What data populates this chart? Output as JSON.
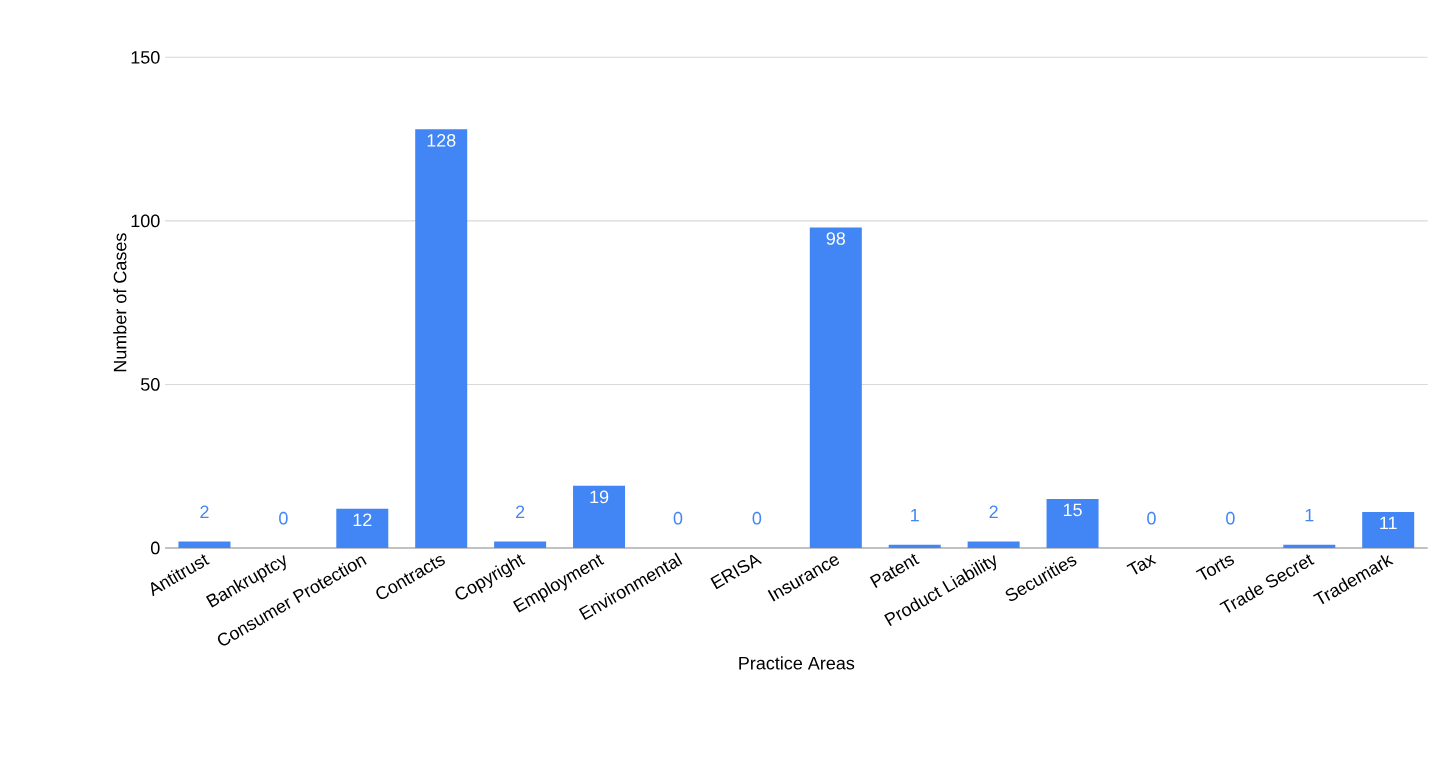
{
  "chart_data": {
    "type": "bar",
    "xlabel": "Practice Areas",
    "ylabel": "Number of Cases",
    "categories": [
      "Antitrust",
      "Bankruptcy",
      "Consumer Protection",
      "Contracts",
      "Copyright",
      "Employment",
      "Environmental",
      "ERISA",
      "Insurance",
      "Patent",
      "Product Liability",
      "Securities",
      "Tax",
      "Torts",
      "Trade Secret",
      "Trademark"
    ],
    "values": [
      2,
      0,
      12,
      128,
      2,
      19,
      0,
      0,
      98,
      1,
      2,
      15,
      0,
      0,
      1,
      11
    ],
    "color": "#4285f4",
    "ylim": [
      0,
      150
    ],
    "yticks": [
      0,
      50,
      100,
      150
    ],
    "grid": "y",
    "data_labels": true
  }
}
